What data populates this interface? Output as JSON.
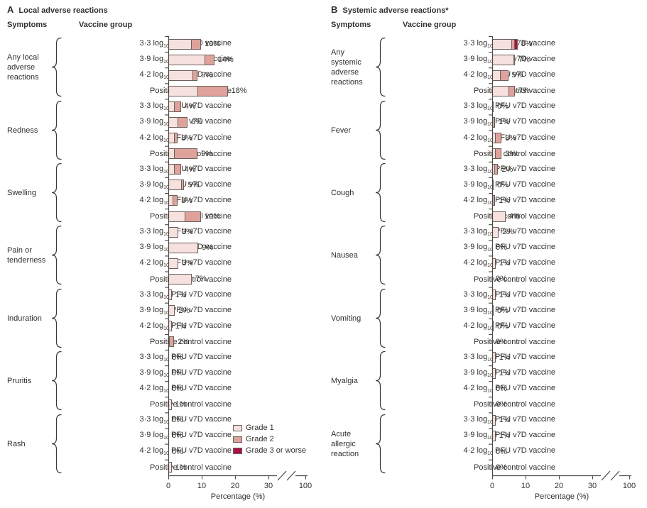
{
  "figure": {
    "legend": {
      "items": [
        {
          "label": "Grade 1",
          "color": "#f7e1de"
        },
        {
          "label": "Grade 2",
          "color": "#dfa29b"
        },
        {
          "label": "Grade 3 or worse",
          "color": "#ab0f45"
        }
      ]
    },
    "axis_color": "#4c4843",
    "bar_border_color": "#6a615c"
  },
  "panels": [
    {
      "letter": "A",
      "title": "Local adverse reactions",
      "symptoms_header": "Symptoms",
      "vaccine_header": "Vaccine group",
      "xlabel": "Percentage (%)"
    },
    {
      "letter": "B",
      "title": "Systemic adverse reactions*",
      "symptoms_header": "Symptoms",
      "vaccine_header": "Vaccine group",
      "xlabel": "Percentage (%)"
    }
  ],
  "chart_data": [
    {
      "type": "bar",
      "orientation": "horizontal",
      "stacked": true,
      "panel": "A",
      "title": "Local adverse reactions",
      "xlabel": "Percentage (%)",
      "x_ticks": [
        0,
        10,
        20,
        30,
        100
      ],
      "axis_break": {
        "after": 30,
        "before": 100
      },
      "series": [
        "Grade 1",
        "Grade 2",
        "Grade 3 or worse"
      ],
      "vaccine_groups": [
        "3·3 log10 PFU v7D vaccine",
        "3·9 log10 PFU v7D vaccine",
        "4·2 log10 PFU v7D vaccine",
        "Positive control vaccine"
      ],
      "groups": [
        {
          "symptom": "Any local adverse reactions",
          "bars": [
            {
              "vaccine": "3·3 log10 PFU v7D vaccine",
              "grade1": 7,
              "grade2": 3,
              "grade3": 0,
              "total_label": "10%"
            },
            {
              "vaccine": "3·9 log10 PFU v7D vaccine",
              "grade1": 11,
              "grade2": 3,
              "grade3": 0,
              "total_label": "14%"
            },
            {
              "vaccine": "4·2 log10 PFU v7D vaccine",
              "grade1": 7.5,
              "grade2": 1.5,
              "grade3": 0,
              "total_label": "9%"
            },
            {
              "vaccine": "Positive control vaccine",
              "grade1": 9,
              "grade2": 9,
              "grade3": 0,
              "total_label": "18%"
            }
          ]
        },
        {
          "symptom": "Redness",
          "bars": [
            {
              "vaccine": "3·3 log10 PFU v7D vaccine",
              "grade1": 2,
              "grade2": 2,
              "grade3": 0,
              "total_label": "4%"
            },
            {
              "vaccine": "3·9 log10 PFU v7D vaccine",
              "grade1": 3,
              "grade2": 3,
              "grade3": 0,
              "total_label": "6%"
            },
            {
              "vaccine": "4·2 log10 PFU v7D vaccine",
              "grade1": 2,
              "grade2": 1,
              "grade3": 0,
              "total_label": "3%"
            },
            {
              "vaccine": "Positive control vaccine",
              "grade1": 2,
              "grade2": 7,
              "grade3": 0,
              "total_label": "9%"
            }
          ]
        },
        {
          "symptom": "Swelling",
          "bars": [
            {
              "vaccine": "3·3 log10 PFU v7D vaccine",
              "grade1": 2,
              "grade2": 2,
              "grade3": 0,
              "total_label": "4%"
            },
            {
              "vaccine": "3·9 log10 PFU v7D vaccine",
              "grade1": 4,
              "grade2": 1,
              "grade3": 0,
              "total_label": "5%"
            },
            {
              "vaccine": "4·2 log10 PFU v7D vaccine",
              "grade1": 1.5,
              "grade2": 1.5,
              "grade3": 0,
              "total_label": "3%"
            },
            {
              "vaccine": "Positive control vaccine",
              "grade1": 5,
              "grade2": 5,
              "grade3": 0,
              "total_label": "10%"
            }
          ]
        },
        {
          "symptom": "Pain or tenderness",
          "bars": [
            {
              "vaccine": "3·3 log10 PFU v7D vaccine",
              "grade1": 3,
              "grade2": 0,
              "grade3": 0,
              "total_label": "3%"
            },
            {
              "vaccine": "3·9 log10 PFU v7D vaccine",
              "grade1": 9,
              "grade2": 0,
              "grade3": 0,
              "total_label": "9%"
            },
            {
              "vaccine": "4·2 log10 PFU v7D vaccine",
              "grade1": 3,
              "grade2": 0,
              "grade3": 0,
              "total_label": "3%"
            },
            {
              "vaccine": "Positive control vaccine",
              "grade1": 7,
              "grade2": 0,
              "grade3": 0,
              "total_label": "7%"
            }
          ]
        },
        {
          "symptom": "Induration",
          "bars": [
            {
              "vaccine": "3·3 log10 PFU v7D vaccine",
              "grade1": 1,
              "grade2": 0,
              "grade3": 0,
              "total_label": "1%"
            },
            {
              "vaccine": "3·9 log10 PFU v7D vaccine",
              "grade1": 2,
              "grade2": 0,
              "grade3": 0,
              "total_label": "2%"
            },
            {
              "vaccine": "4·2 log10 PFU v7D vaccine",
              "grade1": 1,
              "grade2": 0,
              "grade3": 0,
              "total_label": "1%"
            },
            {
              "vaccine": "Positive control vaccine",
              "grade1": 0.5,
              "grade2": 1.5,
              "grade3": 0,
              "total_label": "2%"
            }
          ]
        },
        {
          "symptom": "Pruritis",
          "bars": [
            {
              "vaccine": "3·3 log10 PFU v7D vaccine",
              "grade1": 0,
              "grade2": 0,
              "grade3": 0,
              "total_label": "0%"
            },
            {
              "vaccine": "3·9 log10 PFU v7D vaccine",
              "grade1": 0,
              "grade2": 0,
              "grade3": 0,
              "total_label": "0%"
            },
            {
              "vaccine": "4·2 log10 PFU v7D vaccine",
              "grade1": 0,
              "grade2": 0,
              "grade3": 0,
              "total_label": "0%"
            },
            {
              "vaccine": "Positive control vaccine",
              "grade1": 1,
              "grade2": 0,
              "grade3": 0,
              "total_label": "1%"
            }
          ]
        },
        {
          "symptom": "Rash",
          "bars": [
            {
              "vaccine": "3·3 log10 PFU v7D vaccine",
              "grade1": 0,
              "grade2": 0,
              "grade3": 0,
              "total_label": "0%"
            },
            {
              "vaccine": "3·9 log10 PFU v7D vaccine",
              "grade1": 0,
              "grade2": 0,
              "grade3": 0,
              "total_label": "0%"
            },
            {
              "vaccine": "4·2 log10 PFU v7D vaccine",
              "grade1": 0,
              "grade2": 0,
              "grade3": 0,
              "total_label": "0%"
            },
            {
              "vaccine": "Positive control vaccine",
              "grade1": 1,
              "grade2": 0,
              "grade3": 0,
              "total_label": "1%"
            }
          ]
        }
      ]
    },
    {
      "type": "bar",
      "orientation": "horizontal",
      "stacked": true,
      "panel": "B",
      "title": "Systemic adverse reactions*",
      "xlabel": "Percentage (%)",
      "x_ticks": [
        0,
        10,
        20,
        30,
        100
      ],
      "axis_break": {
        "after": 30,
        "before": 100
      },
      "series": [
        "Grade 1",
        "Grade 2",
        "Grade 3 or worse"
      ],
      "vaccine_groups": [
        "3·3 log10 PFU v7D vaccine",
        "3·9 log10 PFU v7D vaccine",
        "4·2 log10 PFU v7D vaccine",
        "Positive control vaccine"
      ],
      "groups": [
        {
          "symptom": "Any systemic adverse reactions",
          "bars": [
            {
              "vaccine": "3·3 log10 PFU v7D vaccine",
              "grade1": 6,
              "grade2": 1,
              "grade3": 1,
              "total_label": "8%"
            },
            {
              "vaccine": "3·9 log10 PFU v7D vaccine",
              "grade1": 6.6,
              "grade2": 0.4,
              "grade3": 0,
              "total_label": "7%"
            },
            {
              "vaccine": "4·2 log10 PFU v7D vaccine",
              "grade1": 2.5,
              "grade2": 2.5,
              "grade3": 0,
              "total_label": "5%"
            },
            {
              "vaccine": "Positive control vaccine",
              "grade1": 5,
              "grade2": 2,
              "grade3": 0,
              "total_label": "7%"
            }
          ]
        },
        {
          "symptom": "Fever",
          "bars": [
            {
              "vaccine": "3·3 log10 PFU v7D vaccine",
              "grade1": 0,
              "grade2": 0,
              "grade3": 0.4,
              "total_label": "0%"
            },
            {
              "vaccine": "3·9 log10 PFU v7D vaccine",
              "grade1": 0.6,
              "grade2": 0.4,
              "grade3": 0,
              "total_label": "1%"
            },
            {
              "vaccine": "4·2 log10 PFU v7D vaccine",
              "grade1": 1,
              "grade2": 2,
              "grade3": 0,
              "total_label": "3%"
            },
            {
              "vaccine": "Positive control vaccine",
              "grade1": 1,
              "grade2": 2,
              "grade3": 0,
              "total_label": "3%"
            }
          ]
        },
        {
          "symptom": "Cough",
          "bars": [
            {
              "vaccine": "3·3 log10 PFU v7D vaccine",
              "grade1": 0.8,
              "grade2": 1.2,
              "grade3": 0,
              "total_label": "2%"
            },
            {
              "vaccine": "3·9 log10 PFU v7D vaccine",
              "grade1": 0.25,
              "grade2": 0,
              "grade3": 0,
              "total_label": "0%"
            },
            {
              "vaccine": "4·2 log10 PFU v7D vaccine",
              "grade1": 0.7,
              "grade2": 0.3,
              "grade3": 0,
              "total_label": "1%"
            },
            {
              "vaccine": "Positive control vaccine",
              "grade1": 4,
              "grade2": 0,
              "grade3": 0,
              "total_label": "4%"
            }
          ]
        },
        {
          "symptom": "Nausea",
          "bars": [
            {
              "vaccine": "3·3 log10 PFU v7D vaccine",
              "grade1": 2,
              "grade2": 0,
              "grade3": 0,
              "total_label": "2%"
            },
            {
              "vaccine": "3·9 log10 PFU v7D vaccine",
              "grade1": 0,
              "grade2": 0,
              "grade3": 0,
              "total_label": "0%"
            },
            {
              "vaccine": "4·2 log10 PFU v7D vaccine",
              "grade1": 1,
              "grade2": 0,
              "grade3": 0,
              "total_label": "1%"
            },
            {
              "vaccine": "Positive control vaccine",
              "grade1": 0,
              "grade2": 0,
              "grade3": 0,
              "total_label": "0%"
            }
          ]
        },
        {
          "symptom": "Vomiting",
          "bars": [
            {
              "vaccine": "3·3 log10 PFU v7D vaccine",
              "grade1": 1,
              "grade2": 0,
              "grade3": 0,
              "total_label": "1%"
            },
            {
              "vaccine": "3·9 log10 PFU v7D vaccine",
              "grade1": 0.25,
              "grade2": 0,
              "grade3": 0,
              "total_label": "0%"
            },
            {
              "vaccine": "4·2 log10 PFU v7D vaccine",
              "grade1": 0.25,
              "grade2": 0,
              "grade3": 0,
              "total_label": "0%"
            },
            {
              "vaccine": "Positive control vaccine",
              "grade1": 0,
              "grade2": 0,
              "grade3": 0,
              "total_label": "0%"
            }
          ]
        },
        {
          "symptom": "Myalgia",
          "bars": [
            {
              "vaccine": "3·3 log10 PFU v7D vaccine",
              "grade1": 1,
              "grade2": 0,
              "grade3": 0,
              "total_label": "1%"
            },
            {
              "vaccine": "3·9 log10 PFU v7D vaccine",
              "grade1": 1,
              "grade2": 0,
              "grade3": 0,
              "total_label": "1%"
            },
            {
              "vaccine": "4·2 log10 PFU v7D vaccine",
              "grade1": 0,
              "grade2": 0,
              "grade3": 0,
              "total_label": "0%"
            },
            {
              "vaccine": "Positive control vaccine",
              "grade1": 0,
              "grade2": 0,
              "grade3": 0,
              "total_label": "0%"
            }
          ]
        },
        {
          "symptom": "Acute allergic reaction",
          "bars": [
            {
              "vaccine": "3·3 log10 PFU v7D vaccine",
              "grade1": 1,
              "grade2": 0,
              "grade3": 0,
              "total_label": "1%"
            },
            {
              "vaccine": "3·9 log10 PFU v7D vaccine",
              "grade1": 1,
              "grade2": 0,
              "grade3": 0,
              "total_label": "1%"
            },
            {
              "vaccine": "4·2 log10 PFU v7D vaccine",
              "grade1": 0,
              "grade2": 0,
              "grade3": 0,
              "total_label": "0%"
            },
            {
              "vaccine": "Positive control vaccine",
              "grade1": 0,
              "grade2": 0,
              "grade3": 0,
              "total_label": "0%"
            }
          ]
        }
      ]
    }
  ]
}
